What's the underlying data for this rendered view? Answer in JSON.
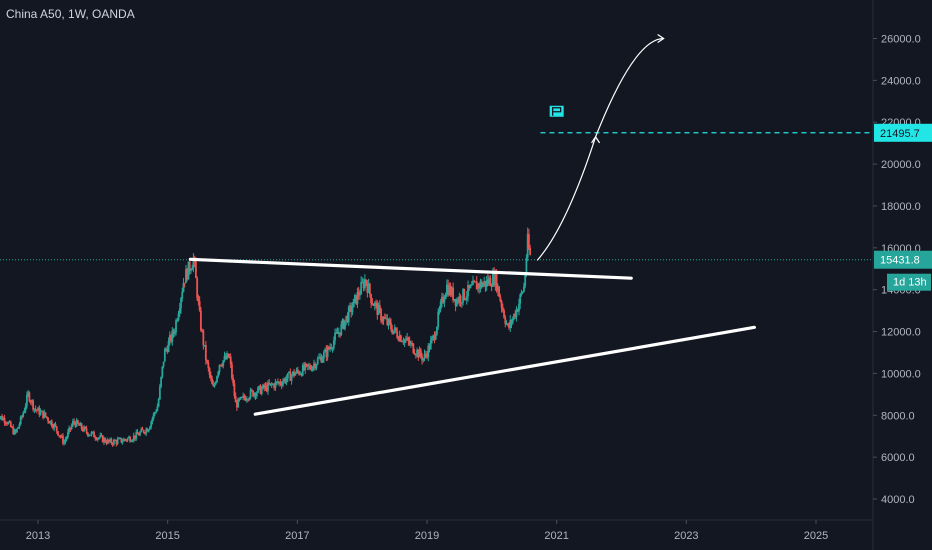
{
  "header": {
    "title": "China A50, 1W, OANDA"
  },
  "chart_data": {
    "type": "candlestick",
    "title": "China A50, 1W, OANDA",
    "symbol": "China A50",
    "interval": "1W",
    "source": "OANDA",
    "x_ticks": [
      "2013",
      "2015",
      "2017",
      "2019",
      "2021",
      "2023",
      "2025"
    ],
    "y_ticks": [
      "4000.0",
      "6000.0",
      "8000.0",
      "10000.0",
      "12000.0",
      "14000.0",
      "16000.0",
      "18000.0",
      "20000.0",
      "22000.0",
      "24000.0",
      "26000.0"
    ],
    "ylim": [
      2800,
      27700
    ],
    "xlim": [
      2012.35,
      2026.0
    ],
    "last_price": {
      "label": "15431.8",
      "value": 15431.8,
      "color": "#26a69a"
    },
    "countdown": {
      "label": "1d 13h",
      "color": "#26a69a"
    },
    "target": {
      "label": "21495.7",
      "value": 21495.7,
      "color": "#22e6e6"
    },
    "price_path": [
      [
        2012.35,
        8000
      ],
      [
        2012.5,
        7800
      ],
      [
        2012.65,
        7100
      ],
      [
        2012.75,
        7900
      ],
      [
        2012.85,
        9000
      ],
      [
        2012.95,
        8300
      ],
      [
        2013.1,
        8000
      ],
      [
        2013.25,
        7500
      ],
      [
        2013.4,
        6700
      ],
      [
        2013.55,
        7700
      ],
      [
        2013.75,
        7200
      ],
      [
        2013.9,
        7000
      ],
      [
        2014.1,
        6700
      ],
      [
        2014.3,
        6800
      ],
      [
        2014.5,
        7000
      ],
      [
        2014.7,
        7400
      ],
      [
        2014.85,
        8500
      ],
      [
        2014.95,
        11000
      ],
      [
        2015.1,
        12000
      ],
      [
        2015.25,
        14500
      ],
      [
        2015.4,
        15500
      ],
      [
        2015.5,
        12500
      ],
      [
        2015.6,
        10500
      ],
      [
        2015.7,
        9200
      ],
      [
        2015.8,
        10500
      ],
      [
        2015.95,
        10800
      ],
      [
        2016.05,
        8500
      ],
      [
        2016.25,
        9000
      ],
      [
        2016.5,
        9300
      ],
      [
        2016.75,
        9600
      ],
      [
        2016.95,
        10000
      ],
      [
        2017.2,
        10300
      ],
      [
        2017.45,
        11000
      ],
      [
        2017.7,
        12300
      ],
      [
        2017.85,
        13200
      ],
      [
        2018.05,
        14500
      ],
      [
        2018.15,
        13500
      ],
      [
        2018.3,
        12700
      ],
      [
        2018.5,
        12000
      ],
      [
        2018.7,
        11500
      ],
      [
        2018.95,
        10700
      ],
      [
        2019.1,
        11700
      ],
      [
        2019.2,
        13000
      ],
      [
        2019.3,
        14200
      ],
      [
        2019.45,
        13500
      ],
      [
        2019.6,
        13800
      ],
      [
        2019.75,
        14200
      ],
      [
        2019.9,
        14300
      ],
      [
        2020.05,
        14600
      ],
      [
        2020.15,
        13300
      ],
      [
        2020.25,
        12100
      ],
      [
        2020.4,
        13200
      ],
      [
        2020.5,
        14200
      ],
      [
        2020.55,
        16300
      ],
      [
        2020.6,
        15431.8
      ]
    ]
  },
  "annotations": {
    "upper_trendline": [
      [
        2015.35,
        15450
      ],
      [
        2022.15,
        14550
      ]
    ],
    "lower_trendline": [
      [
        2016.35,
        8050
      ],
      [
        2024.05,
        12200
      ]
    ],
    "arrow_path": [
      [
        2020.7,
        15400
      ],
      [
        2021.15,
        17000
      ],
      [
        2021.6,
        21300
      ],
      [
        2022.2,
        26000
      ],
      [
        2022.65,
        26000
      ]
    ],
    "target_line_from": 2020.75,
    "flag_at": [
      2021.0,
      22500
    ],
    "last_price_line_color": "#26a69a",
    "up_color": "#26a69a",
    "down_color": "#ef5350",
    "axis_color": "#2a2e39"
  }
}
